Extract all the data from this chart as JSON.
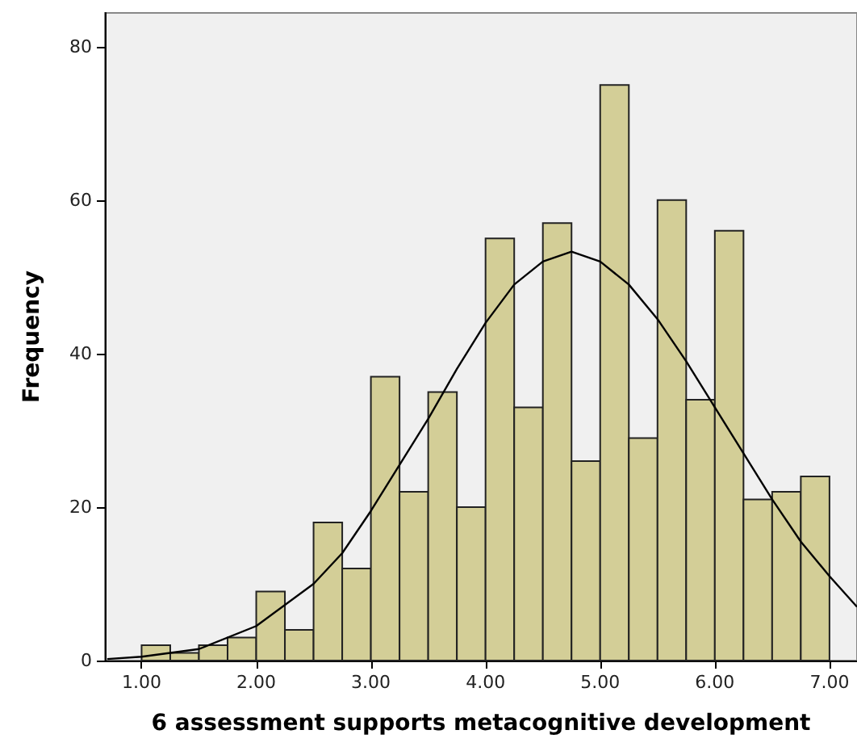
{
  "chart_data": {
    "type": "histogram",
    "xlabel": "6 assessment supports metacognitive development",
    "ylabel": "Frequency",
    "bins": [
      1.0,
      1.25,
      1.5,
      1.75,
      2.0,
      2.25,
      2.5,
      2.75,
      3.0,
      3.25,
      3.5,
      3.75,
      4.0,
      4.25,
      4.5,
      4.75,
      5.0,
      5.25,
      5.5,
      5.75,
      6.0,
      6.25,
      6.5,
      6.75,
      7.0
    ],
    "series": [
      {
        "color": "#d3ce97",
        "values": [
          2,
          1,
          2,
          3,
          9,
          4,
          18,
          12,
          37,
          22,
          35,
          20,
          55,
          33,
          57,
          26,
          75,
          29,
          60,
          34,
          56,
          21,
          22,
          24
        ]
      },
      {
        "type": "line",
        "color": "#000000",
        "marker": "none",
        "x": [
          0.7,
          1.0,
          1.5,
          2.0,
          2.5,
          2.75,
          3.0,
          3.25,
          3.5,
          3.75,
          4.0,
          4.25,
          4.5,
          4.75,
          5.0,
          5.25,
          5.5,
          5.75,
          6.0,
          6.25,
          6.5,
          6.75,
          7.0,
          7.24
        ],
        "values": [
          0.2,
          0.5,
          1.5,
          4.5,
          10,
          14,
          19.5,
          25.5,
          31.5,
          38,
          44,
          49,
          52,
          53.3,
          52,
          49,
          44.5,
          39,
          33,
          27,
          21,
          15.5,
          11,
          7
        ]
      }
    ],
    "xlim": [
      0.68,
      7.24
    ],
    "ylim": [
      0,
      84.4
    ],
    "xticks": [
      {
        "value": 1,
        "label": "1.00"
      },
      {
        "value": 2,
        "label": "2.00"
      },
      {
        "value": 3,
        "label": "3.00"
      },
      {
        "value": 4,
        "label": "4.00"
      },
      {
        "value": 5,
        "label": "5.00"
      },
      {
        "value": 6,
        "label": "6.00"
      },
      {
        "value": 7,
        "label": "7.00"
      }
    ],
    "yticks": [
      0,
      20,
      40,
      60,
      80
    ]
  }
}
